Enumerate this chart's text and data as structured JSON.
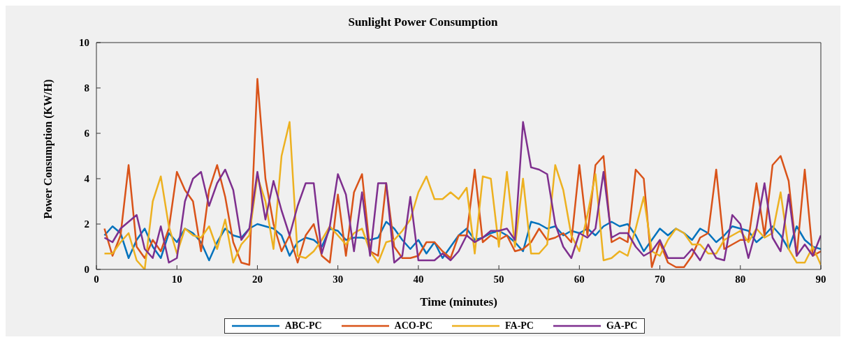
{
  "chart_data": {
    "type": "line",
    "title": "Sunlight Power Consumption",
    "xlabel": "Time (minutes)",
    "ylabel": "Power Consumption (KW/H)",
    "x": [
      1,
      2,
      3,
      4,
      5,
      6,
      7,
      8,
      9,
      10,
      11,
      12,
      13,
      14,
      15,
      16,
      17,
      18,
      19,
      20,
      21,
      22,
      23,
      24,
      25,
      26,
      27,
      28,
      29,
      30,
      31,
      32,
      33,
      34,
      35,
      36,
      37,
      38,
      39,
      40,
      41,
      42,
      43,
      44,
      45,
      46,
      47,
      48,
      49,
      50,
      51,
      52,
      53,
      54,
      55,
      56,
      57,
      58,
      59,
      60,
      61,
      62,
      63,
      64,
      65,
      66,
      67,
      68,
      69,
      70,
      71,
      72,
      73,
      74,
      75,
      76,
      77,
      78,
      79,
      80,
      81,
      82,
      83,
      84,
      85,
      86,
      87,
      88,
      89,
      90
    ],
    "xlim": [
      0,
      90
    ],
    "xticks": [
      0,
      10,
      20,
      30,
      40,
      50,
      60,
      70,
      80,
      90
    ],
    "ylim": [
      0,
      10
    ],
    "yticks": [
      0,
      2,
      4,
      6,
      8,
      10
    ],
    "legend": "bottom",
    "series": [
      {
        "name": "ABC-PC",
        "color": "#0072bd",
        "values": [
          1.5,
          1.9,
          1.6,
          0.5,
          1.3,
          1.8,
          1.0,
          0.5,
          1.6,
          1.2,
          1.8,
          1.6,
          1.2,
          0.4,
          1.2,
          1.8,
          1.5,
          1.4,
          1.8,
          2.0,
          1.9,
          1.8,
          1.5,
          0.6,
          1.2,
          1.4,
          1.3,
          1.0,
          1.8,
          1.7,
          1.3,
          1.4,
          1.4,
          1.3,
          1.4,
          2.1,
          1.8,
          1.3,
          0.9,
          1.3,
          0.7,
          1.2,
          0.5,
          1.0,
          1.5,
          1.8,
          1.3,
          1.4,
          1.6,
          1.7,
          1.5,
          1.2,
          0.8,
          2.1,
          2.0,
          1.8,
          1.9,
          1.5,
          1.7,
          1.6,
          1.8,
          1.5,
          1.9,
          2.1,
          1.9,
          2.0,
          1.5,
          0.8,
          1.3,
          1.8,
          1.5,
          1.8,
          1.6,
          1.3,
          1.8,
          1.6,
          1.2,
          1.5,
          1.9,
          1.8,
          1.7,
          1.2,
          1.5,
          1.9,
          1.5,
          0.9,
          1.9,
          1.3,
          1.0,
          0.9
        ]
      },
      {
        "name": "ACO-PC",
        "color": "#d95319",
        "values": [
          1.8,
          0.6,
          1.5,
          4.6,
          1.0,
          0.5,
          1.3,
          0.8,
          1.8,
          4.3,
          3.5,
          3.0,
          0.8,
          3.5,
          4.6,
          3.2,
          1.2,
          0.3,
          0.2,
          8.4,
          4.0,
          2.0,
          0.8,
          1.5,
          0.3,
          1.5,
          2.0,
          0.6,
          0.3,
          3.3,
          0.6,
          3.4,
          4.2,
          0.8,
          0.6,
          3.8,
          1.0,
          0.5,
          0.5,
          0.6,
          1.2,
          1.2,
          0.8,
          0.5,
          1.5,
          1.5,
          4.4,
          1.2,
          1.5,
          1.3,
          1.5,
          0.8,
          0.9,
          1.2,
          1.8,
          1.3,
          1.4,
          1.6,
          1.2,
          4.6,
          1.5,
          4.6,
          5.0,
          1.2,
          1.4,
          1.2,
          4.4,
          4.0,
          0.1,
          1.2,
          0.3,
          0.1,
          0.1,
          0.6,
          1.4,
          1.6,
          4.4,
          0.9,
          1.1,
          1.3,
          1.3,
          3.8,
          1.5,
          4.6,
          5.0,
          3.9,
          0.6,
          4.4,
          0.6,
          0.8
        ]
      },
      {
        "name": "FA-PC",
        "color": "#edb120",
        "values": [
          0.7,
          0.7,
          1.2,
          1.6,
          0.4,
          0.0,
          3.0,
          4.1,
          1.9,
          0.7,
          1.8,
          1.5,
          1.4,
          1.9,
          0.9,
          2.2,
          0.3,
          1.1,
          1.5,
          4.1,
          3.0,
          0.9,
          5.0,
          6.5,
          0.6,
          0.5,
          0.8,
          1.3,
          1.9,
          1.5,
          1.1,
          1.6,
          1.8,
          0.8,
          0.3,
          1.2,
          1.3,
          1.7,
          2.2,
          3.4,
          4.1,
          3.1,
          3.1,
          3.4,
          3.1,
          3.6,
          0.7,
          4.1,
          4.0,
          1.0,
          4.3,
          1.0,
          4.0,
          0.7,
          0.7,
          1.1,
          4.6,
          3.5,
          1.5,
          0.8,
          2.4,
          4.2,
          0.4,
          0.5,
          0.8,
          0.6,
          1.8,
          3.2,
          0.8,
          0.6,
          1.3,
          1.8,
          1.6,
          1.1,
          1.1,
          0.7,
          0.7,
          1.3,
          1.5,
          1.7,
          1.2,
          1.8,
          1.4,
          1.6,
          3.4,
          0.9,
          0.3,
          0.3,
          1.0,
          0.2
        ]
      },
      {
        "name": "GA-PC",
        "color": "#7e2f8e",
        "values": [
          1.4,
          1.2,
          1.8,
          2.1,
          2.4,
          0.9,
          0.5,
          1.9,
          0.3,
          0.5,
          3.0,
          4.0,
          4.3,
          2.8,
          3.8,
          4.4,
          3.5,
          1.3,
          1.8,
          4.3,
          2.2,
          3.9,
          2.6,
          1.5,
          2.8,
          3.8,
          3.8,
          0.7,
          1.9,
          4.2,
          3.3,
          0.8,
          3.4,
          0.6,
          3.8,
          3.8,
          0.3,
          0.6,
          3.2,
          0.4,
          0.4,
          0.4,
          0.7,
          0.4,
          0.8,
          1.5,
          1.2,
          1.4,
          1.7,
          1.7,
          1.8,
          1.3,
          6.5,
          4.5,
          4.4,
          4.2,
          2.0,
          1.0,
          0.5,
          1.6,
          1.4,
          1.8,
          4.3,
          1.4,
          1.6,
          1.6,
          1.0,
          0.6,
          0.8,
          1.3,
          0.5,
          0.5,
          0.5,
          0.9,
          0.4,
          1.1,
          0.5,
          0.4,
          2.4,
          2.0,
          0.5,
          1.8,
          3.8,
          1.4,
          0.8,
          3.3,
          0.6,
          1.1,
          0.6,
          1.5
        ]
      }
    ]
  }
}
